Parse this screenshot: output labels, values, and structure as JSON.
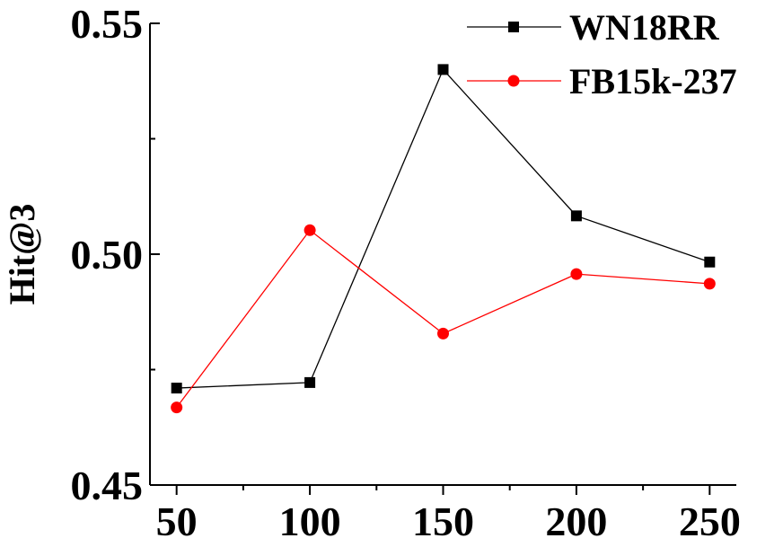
{
  "chart_data": {
    "type": "line",
    "title": "",
    "xlabel": "",
    "ylabel": "Hit@3",
    "x": [
      50,
      100,
      150,
      200,
      250
    ],
    "xlim": [
      40,
      260
    ],
    "ylim": [
      0.45,
      0.55
    ],
    "xticks": [
      50,
      100,
      150,
      200,
      250
    ],
    "xtick_labels": [
      "50",
      "100",
      "150",
      "200",
      "250"
    ],
    "yticks": [
      0.45,
      0.5,
      0.55
    ],
    "ytick_labels": [
      "0.45",
      "0.50",
      "0.55"
    ],
    "grid": false,
    "legend_position": "top-right",
    "series": [
      {
        "name": "WN18RR",
        "values": [
          0.471,
          0.4722,
          0.54,
          0.5083,
          0.4983
        ],
        "color": "#000000",
        "marker": "square"
      },
      {
        "name": "FB15k-237",
        "values": [
          0.4668,
          0.5052,
          0.4828,
          0.4957,
          0.4936
        ],
        "color": "#ff0000",
        "marker": "circle"
      }
    ]
  }
}
